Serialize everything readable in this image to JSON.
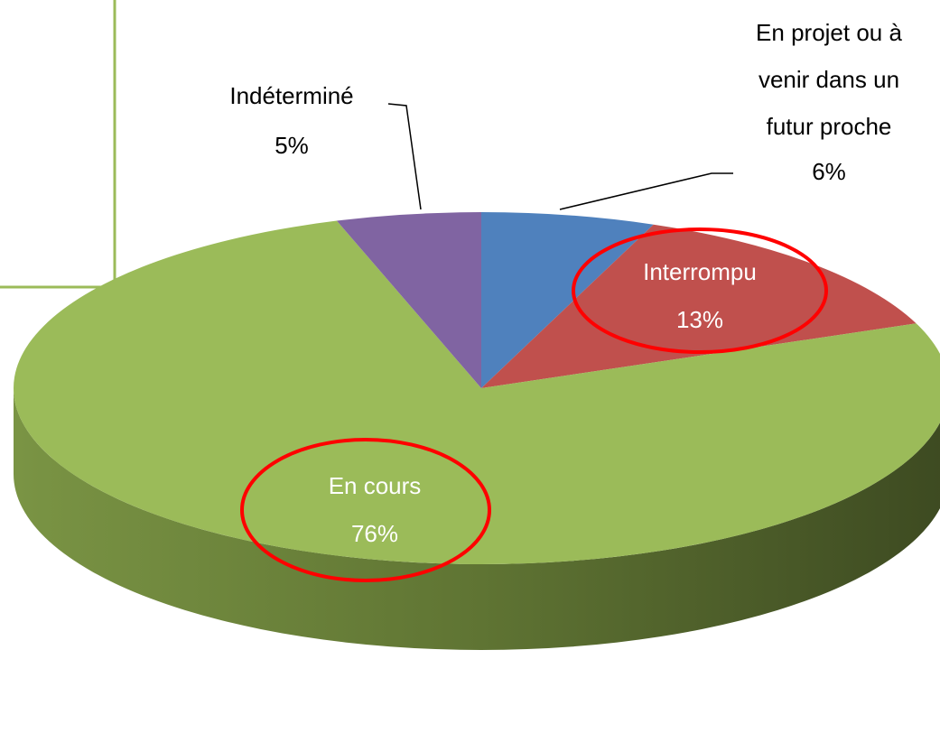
{
  "chart_data": {
    "type": "pie",
    "categories": [
      "En projet ou à venir dans un futur proche",
      "Interrompu",
      "En cours",
      "Indéterminé"
    ],
    "values": [
      6,
      13,
      76,
      5
    ],
    "value_labels": [
      "6%",
      "13%",
      "76%",
      "5%"
    ],
    "colors": [
      "#4F81BD",
      "#C0504D",
      "#9BBB59",
      "#8064A2"
    ]
  }
}
